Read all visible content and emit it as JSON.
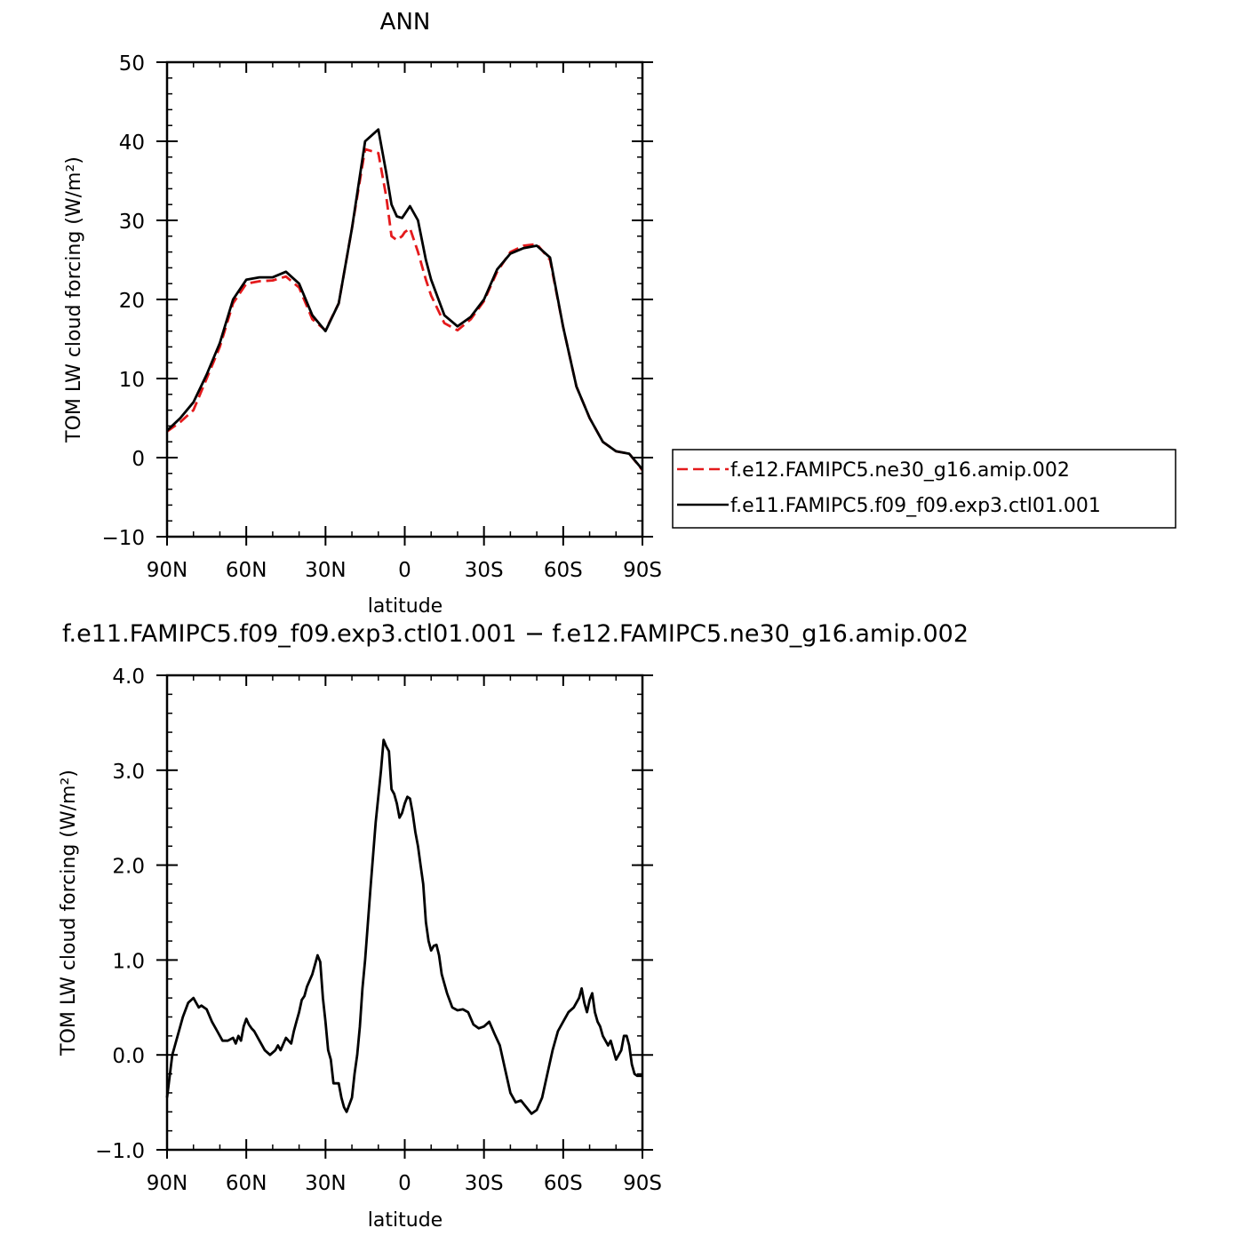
{
  "chart_data": [
    {
      "type": "line",
      "title": "ANN",
      "xlabel": "latitude",
      "ylabel": "TOM LW cloud forcing (W/m²)",
      "xlim": [
        90,
        -90
      ],
      "ylim": [
        -10,
        50
      ],
      "x_ticks": [
        {
          "value": 90,
          "label": "90N"
        },
        {
          "value": 60,
          "label": "60N"
        },
        {
          "value": 30,
          "label": "30N"
        },
        {
          "value": 0,
          "label": "0"
        },
        {
          "value": -30,
          "label": "30S"
        },
        {
          "value": -60,
          "label": "60S"
        },
        {
          "value": -90,
          "label": "90S"
        }
      ],
      "y_ticks": [
        {
          "value": -10,
          "label": "−10"
        },
        {
          "value": 0,
          "label": "0"
        },
        {
          "value": 10,
          "label": "10"
        },
        {
          "value": 20,
          "label": "20"
        },
        {
          "value": 30,
          "label": "30"
        },
        {
          "value": 40,
          "label": "40"
        },
        {
          "value": 50,
          "label": "50"
        }
      ],
      "legend_position": "right",
      "series": [
        {
          "name": "f.e12.FAMIPC5.ne30_g16.amip.002",
          "color": "#e41a1c",
          "dash": "dashed",
          "x": [
            90,
            85,
            80,
            75,
            70,
            65,
            60,
            55,
            50,
            45,
            40,
            35,
            30,
            25,
            20,
            15,
            10,
            7,
            5,
            3,
            1,
            0,
            -2,
            -5,
            -8,
            -10,
            -15,
            -20,
            -25,
            -30,
            -35,
            -40,
            -45,
            -50,
            -55,
            -60,
            -65,
            -70,
            -75,
            -80,
            -85,
            -90
          ],
          "y": [
            3.3,
            4.5,
            6.0,
            10.0,
            14.0,
            19.5,
            22.0,
            22.3,
            22.4,
            22.9,
            21.5,
            17.5,
            16.1,
            19.5,
            29.0,
            39.0,
            38.5,
            33.0,
            28.0,
            27.5,
            28.0,
            28.5,
            29.0,
            26.0,
            22.5,
            20.5,
            17.0,
            16.1,
            17.5,
            19.8,
            23.5,
            26.0,
            26.8,
            27.0,
            25.0,
            16.5,
            9.0,
            5.0,
            2.0,
            0.8,
            0.5,
            -1.6
          ]
        },
        {
          "name": "f.e11.FAMIPC5.f09_f09.exp3.ctl01.001",
          "color": "#000000",
          "dash": "solid",
          "x": [
            90,
            85,
            80,
            75,
            70,
            65,
            60,
            55,
            50,
            45,
            40,
            35,
            30,
            25,
            20,
            15,
            10,
            7,
            5,
            3,
            1,
            0,
            -2,
            -5,
            -8,
            -10,
            -15,
            -20,
            -25,
            -30,
            -35,
            -40,
            -45,
            -50,
            -55,
            -60,
            -65,
            -70,
            -75,
            -80,
            -85,
            -90
          ],
          "y": [
            3.4,
            5.0,
            7.0,
            10.5,
            14.5,
            20.0,
            22.5,
            22.8,
            22.8,
            23.5,
            22.0,
            18.0,
            16.0,
            19.5,
            29.0,
            40.0,
            41.5,
            36.0,
            32.0,
            30.5,
            30.3,
            30.8,
            31.8,
            30.0,
            25.0,
            22.5,
            18.0,
            16.6,
            17.8,
            20.0,
            23.8,
            25.8,
            26.5,
            26.8,
            25.3,
            16.5,
            9.0,
            5.0,
            2.0,
            0.8,
            0.5,
            -1.5
          ]
        }
      ]
    },
    {
      "type": "line",
      "title": "f.e11.FAMIPC5.f09_f09.exp3.ctl01.001 − f.e12.FAMIPC5.ne30_g16.amip.002",
      "xlabel": "latitude",
      "ylabel": "TOM LW cloud forcing (W/m²)",
      "xlim": [
        90,
        -90
      ],
      "ylim": [
        -1.0,
        4.0
      ],
      "x_ticks": [
        {
          "value": 90,
          "label": "90N"
        },
        {
          "value": 60,
          "label": "60N"
        },
        {
          "value": 30,
          "label": "30N"
        },
        {
          "value": 0,
          "label": "0"
        },
        {
          "value": -30,
          "label": "30S"
        },
        {
          "value": -60,
          "label": "60S"
        },
        {
          "value": -90,
          "label": "90S"
        }
      ],
      "y_ticks": [
        {
          "value": -1.0,
          "label": "−1.0"
        },
        {
          "value": 0.0,
          "label": "0.0"
        },
        {
          "value": 1.0,
          "label": "1.0"
        },
        {
          "value": 2.0,
          "label": "2.0"
        },
        {
          "value": 3.0,
          "label": "3.0"
        },
        {
          "value": 4.0,
          "label": "4.0"
        }
      ],
      "series": [
        {
          "color": "#000000",
          "dash": "solid",
          "x": [
            90,
            88,
            86,
            84,
            82,
            80,
            79,
            78,
            77,
            75,
            73,
            71,
            69,
            67,
            65,
            64,
            63,
            62,
            61,
            60,
            59,
            58,
            57,
            55,
            53,
            51,
            49,
            48,
            47,
            45,
            43,
            42,
            41,
            40,
            39,
            38,
            37,
            35,
            33,
            32,
            31,
            30,
            29,
            28,
            27,
            25,
            24,
            23,
            22,
            20,
            19,
            18,
            17,
            16,
            15,
            13,
            11,
            9,
            8,
            7,
            6,
            5,
            4,
            3,
            2,
            1,
            0,
            -1,
            -2,
            -3,
            -4,
            -5,
            -6,
            -7,
            -8,
            -9,
            -10,
            -11,
            -12,
            -13,
            -14,
            -15,
            -16,
            -18,
            -20,
            -22,
            -24,
            -26,
            -28,
            -30,
            -32,
            -34,
            -36,
            -38,
            -40,
            -42,
            -44,
            -46,
            -48,
            -50,
            -52,
            -54,
            -56,
            -58,
            -60,
            -62,
            -64,
            -66,
            -67,
            -68,
            -69,
            -70,
            -71,
            -72,
            -73,
            -74,
            -75,
            -76,
            -77,
            -78,
            -79,
            -80,
            -81,
            -82,
            -83,
            -84,
            -85,
            -86,
            -87,
            -88,
            -90
          ],
          "y": [
            -0.45,
            0.0,
            0.2,
            0.4,
            0.55,
            0.6,
            0.55,
            0.5,
            0.52,
            0.48,
            0.35,
            0.25,
            0.15,
            0.15,
            0.18,
            0.12,
            0.2,
            0.15,
            0.3,
            0.38,
            0.32,
            0.28,
            0.25,
            0.15,
            0.05,
            0.0,
            0.05,
            0.1,
            0.05,
            0.18,
            0.12,
            0.25,
            0.35,
            0.45,
            0.58,
            0.62,
            0.72,
            0.85,
            1.05,
            0.98,
            0.6,
            0.35,
            0.05,
            -0.05,
            -0.3,
            -0.3,
            -0.45,
            -0.55,
            -0.6,
            -0.45,
            -0.2,
            0.0,
            0.3,
            0.7,
            1.0,
            1.75,
            2.45,
            3.0,
            3.32,
            3.25,
            3.2,
            2.8,
            2.75,
            2.65,
            2.5,
            2.55,
            2.65,
            2.72,
            2.7,
            2.55,
            2.35,
            2.2,
            2.0,
            1.8,
            1.4,
            1.2,
            1.1,
            1.15,
            1.16,
            1.05,
            0.85,
            0.75,
            0.65,
            0.5,
            0.47,
            0.48,
            0.45,
            0.32,
            0.28,
            0.3,
            0.35,
            0.22,
            0.1,
            -0.15,
            -0.4,
            -0.5,
            -0.48,
            -0.55,
            -0.62,
            -0.58,
            -0.45,
            -0.2,
            0.05,
            0.25,
            0.35,
            0.45,
            0.5,
            0.6,
            0.7,
            0.55,
            0.45,
            0.58,
            0.65,
            0.45,
            0.35,
            0.3,
            0.2,
            0.15,
            0.1,
            0.15,
            0.05,
            -0.05,
            0.0,
            0.05,
            0.2,
            0.2,
            0.1,
            -0.1,
            -0.2,
            -0.22,
            -0.22
          ]
        }
      ]
    }
  ]
}
